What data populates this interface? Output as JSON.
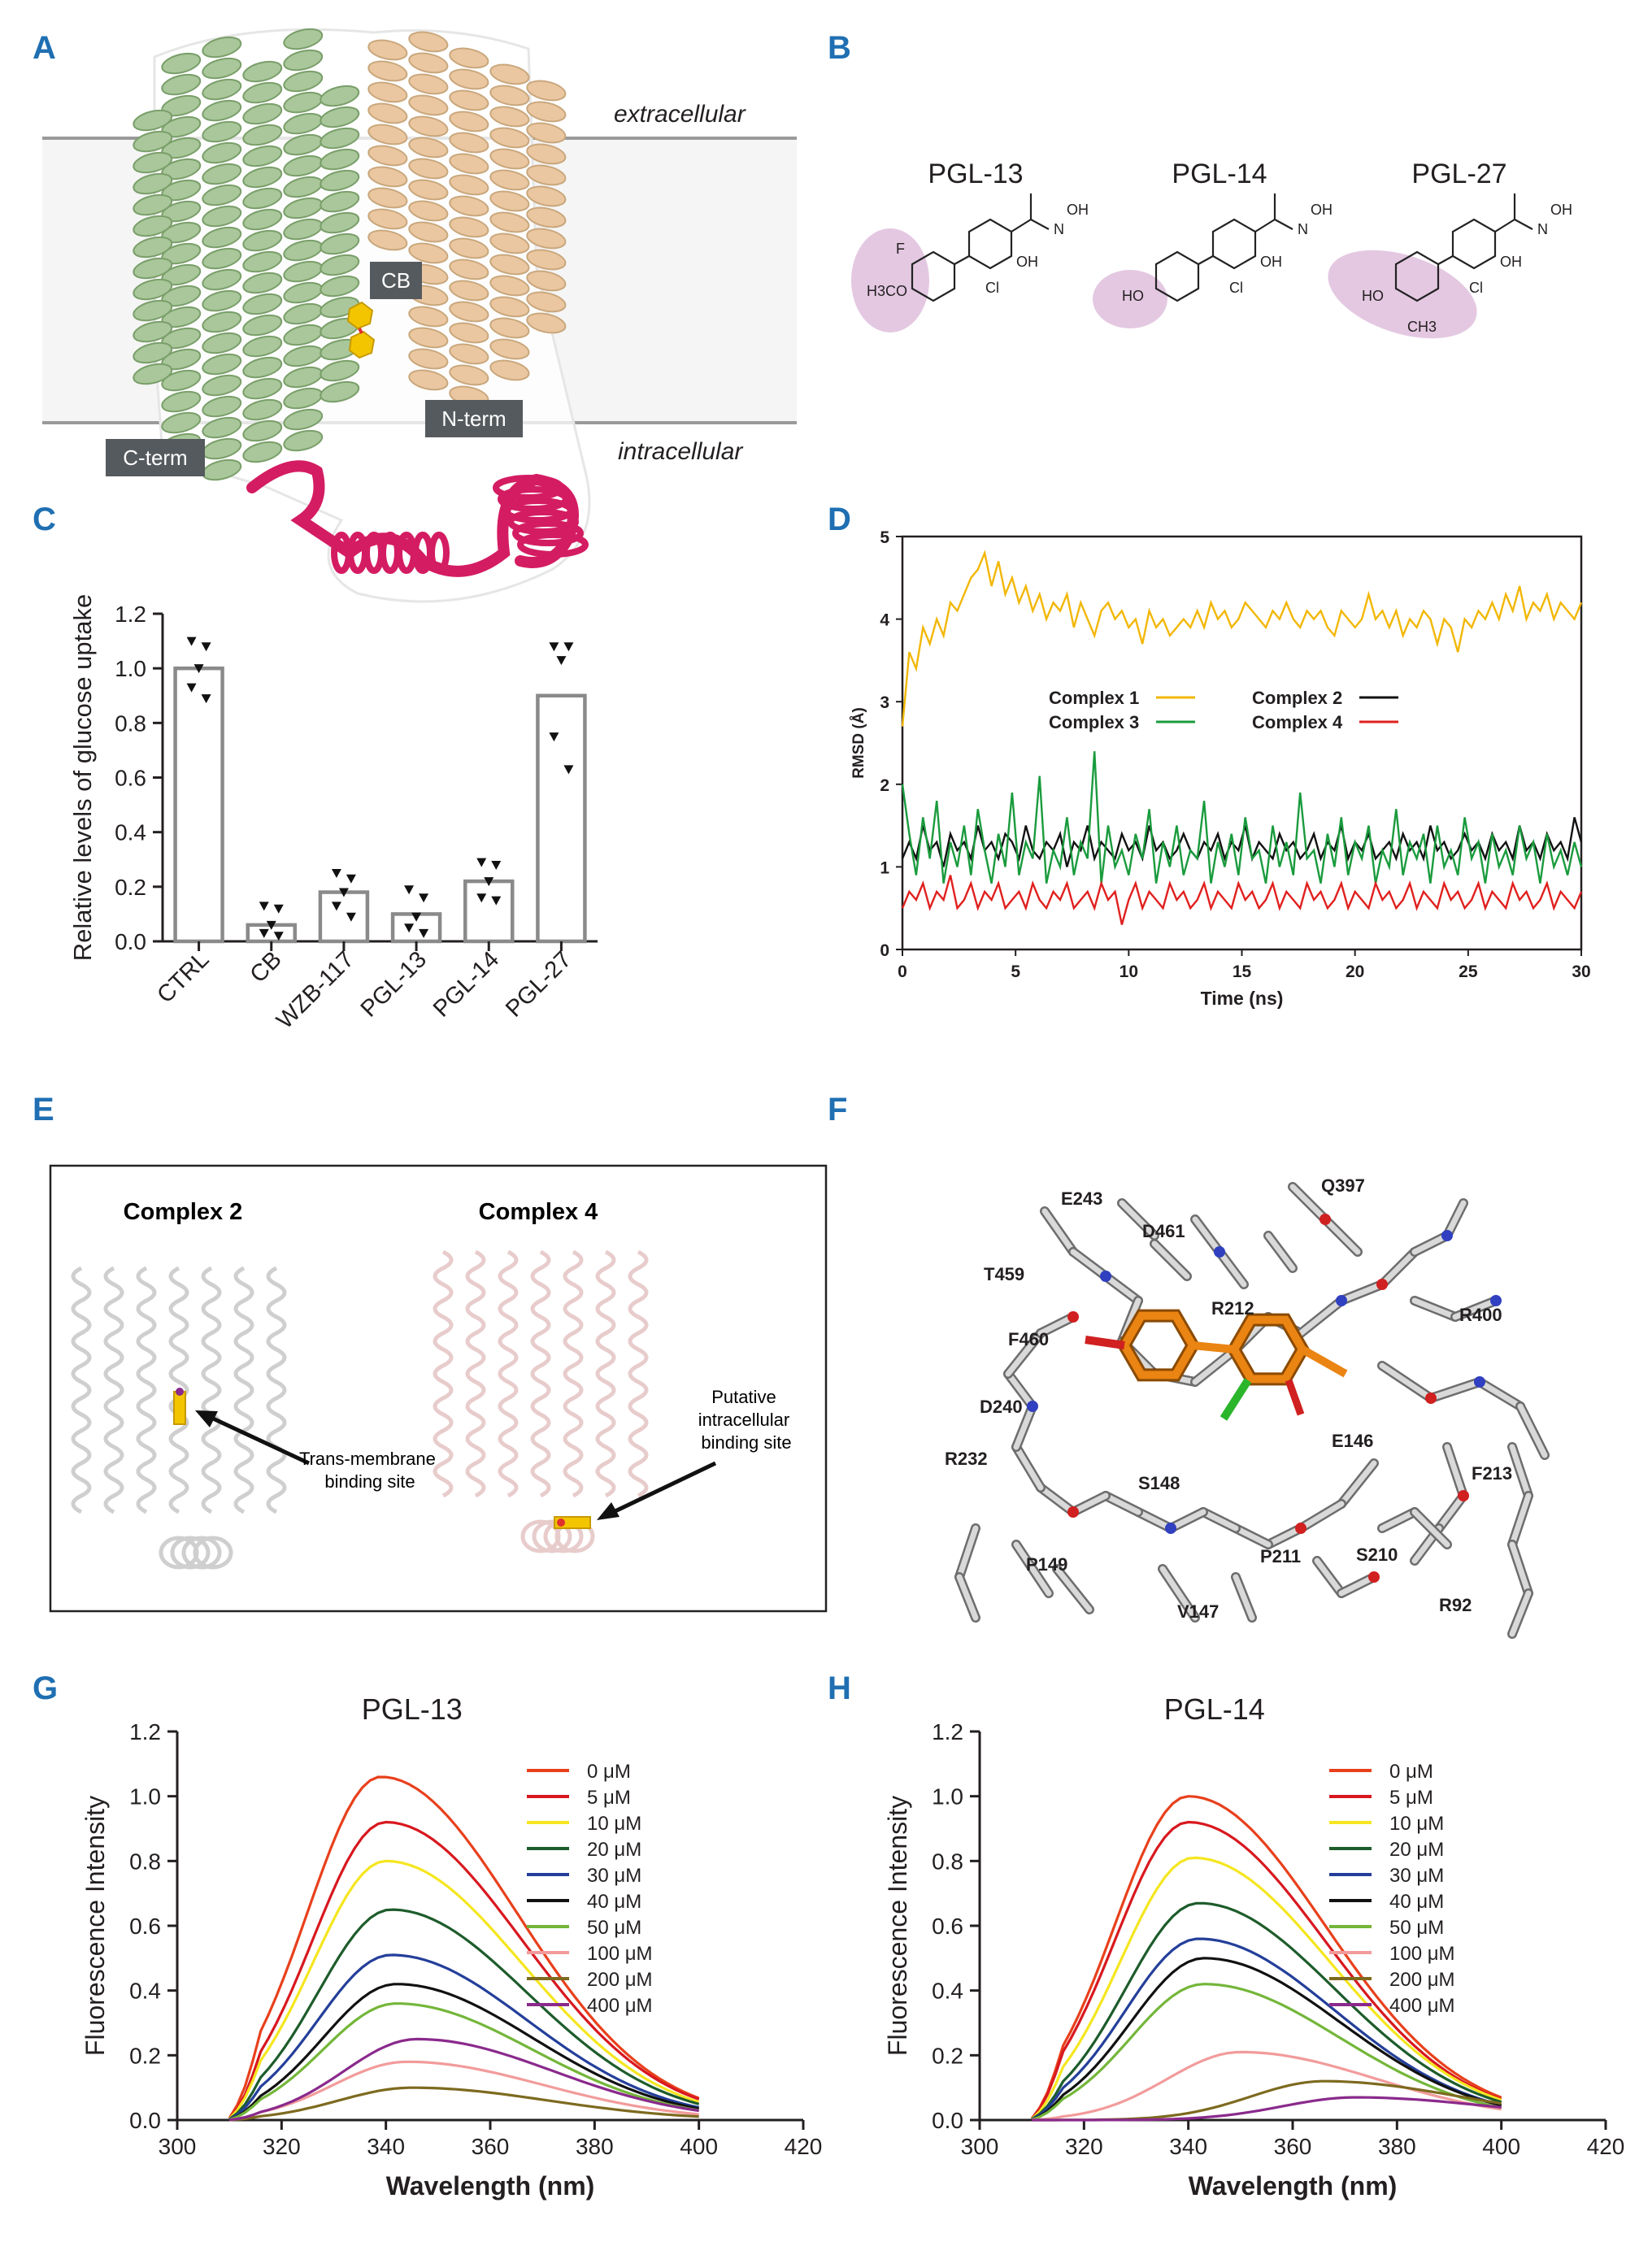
{
  "panels": {
    "A": {
      "label": "A",
      "extracellular": "extracellular",
      "intracellular": "intracellular",
      "boxes": [
        "CB",
        "N-term",
        "C-term"
      ],
      "colors": {
        "chain_c": "#a9c79a",
        "chain_n": "#eac7a0",
        "loop": "#d41c62",
        "ligand": "#f2c500"
      }
    },
    "B": {
      "label": "B",
      "compounds": [
        {
          "name": "PGL-13",
          "substituents": [
            "F",
            "H3CO"
          ]
        },
        {
          "name": "PGL-14",
          "substituents": [
            "HO"
          ]
        },
        {
          "name": "PGL-27",
          "substituents": [
            "HO",
            "CH3"
          ]
        }
      ],
      "core_atoms": [
        "OH",
        "Cl",
        "N",
        "OH"
      ],
      "highlight_color": "#d8b0d5"
    },
    "C": {
      "label": "C"
    },
    "D": {
      "label": "D"
    },
    "E": {
      "label": "E",
      "complexes": [
        {
          "title": "Complex 2",
          "note": "Trans-membrane binding site"
        },
        {
          "title": "Complex 4",
          "note": "Putative intracellular binding site"
        }
      ]
    },
    "F": {
      "label": "F",
      "residues": [
        "E243",
        "D461",
        "Q397",
        "T459",
        "F460",
        "R212",
        "R400",
        "D240",
        "R232",
        "E146",
        "F213",
        "S148",
        "S210",
        "P149",
        "P211",
        "V147",
        "R92"
      ],
      "ligand_color": "#ea8412"
    },
    "G": {
      "label": "G"
    },
    "H": {
      "label": "H"
    }
  },
  "chart_data": [
    {
      "panel": "C",
      "type": "bar",
      "ylabel": "Relative levels of glucose uptake",
      "categories": [
        "CTRL",
        "CB",
        "WZB-117",
        "PGL-13",
        "PGL-14",
        "PGL-27"
      ],
      "values": [
        1.0,
        0.06,
        0.18,
        0.1,
        0.22,
        0.9
      ],
      "points": [
        [
          1.1,
          1.08,
          1.0,
          0.93,
          0.89
        ],
        [
          0.13,
          0.12,
          0.06,
          0.03,
          0.02
        ],
        [
          0.25,
          0.23,
          0.18,
          0.13,
          0.09
        ],
        [
          0.19,
          0.16,
          0.09,
          0.05,
          0.03
        ],
        [
          0.29,
          0.28,
          0.22,
          0.16,
          0.15
        ],
        [
          1.08,
          1.08,
          1.03,
          0.75,
          0.63
        ]
      ],
      "ylim": [
        0,
        1.2
      ],
      "yticks": [
        0.0,
        0.2,
        0.4,
        0.6,
        0.8,
        1.0,
        1.2
      ]
    },
    {
      "panel": "D",
      "type": "line",
      "xlabel": "Time (ns)",
      "ylabel": "RMSD (Å)",
      "xlim": [
        0,
        30
      ],
      "ylim": [
        0,
        5
      ],
      "xticks": [
        0,
        5,
        10,
        15,
        20,
        25,
        30
      ],
      "yticks": [
        0,
        1,
        2,
        3,
        4,
        5
      ],
      "legend_position": "center",
      "series": [
        {
          "name": "Complex 1",
          "color": "#f2b705",
          "y": [
            2.7,
            3.6,
            3.4,
            3.9,
            3.7,
            4.0,
            3.8,
            4.2,
            4.1,
            4.3,
            4.5,
            4.6,
            4.8,
            4.4,
            4.7,
            4.3,
            4.5,
            4.2,
            4.4,
            4.1,
            4.3,
            4.0,
            4.2,
            4.1,
            4.3,
            3.9,
            4.2,
            4.0,
            3.8,
            4.1,
            4.2,
            4.0,
            4.1,
            3.9,
            4.0,
            3.7,
            4.1,
            3.9,
            4.0,
            3.8,
            3.9,
            4.0,
            3.9,
            4.1,
            3.9,
            4.2,
            4.0,
            4.1,
            3.9,
            4.0,
            4.2,
            4.1,
            4.0,
            3.9,
            4.1,
            4.0,
            4.2,
            4.0,
            3.9,
            4.1,
            4.0,
            4.1,
            3.9,
            3.8,
            4.1,
            4.0,
            3.9,
            4.0,
            4.3,
            4.0,
            4.1,
            3.9,
            4.1,
            3.8,
            4.0,
            3.9,
            4.1,
            4.0,
            3.7,
            4.0,
            3.9,
            3.6,
            4.0,
            3.9,
            4.1,
            4.0,
            4.2,
            4.0,
            4.3,
            4.1,
            4.4,
            4.0,
            4.2,
            4.1,
            4.3,
            4.0,
            4.2,
            4.1,
            4.0,
            4.2
          ]
        },
        {
          "name": "Complex 2",
          "color": "#111111",
          "y": [
            1.1,
            1.3,
            1.1,
            1.5,
            1.2,
            1.3,
            1.0,
            1.4,
            1.2,
            1.3,
            1.1,
            1.5,
            1.2,
            1.3,
            1.1,
            1.4,
            1.3,
            1.1,
            1.5,
            1.2,
            1.1,
            1.3,
            1.2,
            1.4,
            1.0,
            1.3,
            1.2,
            1.5,
            1.1,
            1.3,
            1.2,
            1.1,
            1.4,
            1.2,
            1.3,
            1.1,
            1.5,
            1.2,
            1.3,
            1.1,
            1.2,
            1.4,
            1.2,
            1.1,
            1.3,
            1.2,
            1.4,
            1.1,
            1.3,
            1.2,
            1.5,
            1.1,
            1.3,
            1.2,
            1.1,
            1.4,
            1.2,
            1.3,
            1.1,
            1.2,
            1.4,
            1.1,
            1.3,
            1.2,
            1.5,
            1.1,
            1.3,
            1.2,
            1.4,
            1.1,
            1.2,
            1.3,
            1.1,
            1.4,
            1.2,
            1.3,
            1.1,
            1.5,
            1.2,
            1.3,
            1.1,
            1.2,
            1.4,
            1.2,
            1.3,
            1.1,
            1.4,
            1.2,
            1.3,
            1.1,
            1.5,
            1.2,
            1.3,
            1.1,
            1.4,
            1.2,
            1.3,
            1.1,
            1.6,
            1.3
          ]
        },
        {
          "name": "Complex 3",
          "color": "#1a9b3d",
          "y": [
            2.0,
            1.4,
            0.9,
            1.6,
            1.1,
            1.8,
            0.8,
            1.3,
            1.0,
            1.5,
            0.9,
            1.7,
            1.2,
            0.8,
            1.4,
            1.0,
            1.9,
            0.9,
            1.3,
            1.1,
            2.1,
            0.8,
            1.2,
            1.0,
            1.6,
            0.9,
            1.3,
            1.1,
            2.4,
            0.8,
            1.5,
            1.0,
            1.2,
            0.9,
            1.4,
            1.1,
            1.7,
            0.8,
            1.3,
            1.0,
            1.5,
            0.9,
            1.2,
            1.1,
            1.8,
            0.8,
            1.3,
            1.0,
            1.4,
            0.9,
            1.6,
            1.1,
            1.2,
            0.8,
            1.5,
            1.0,
            1.3,
            0.9,
            1.9,
            1.1,
            1.2,
            0.8,
            1.4,
            1.0,
            1.6,
            0.9,
            1.3,
            1.1,
            1.5,
            0.8,
            1.2,
            1.0,
            1.7,
            0.9,
            1.3,
            1.1,
            1.4,
            0.8,
            1.5,
            1.0,
            1.2,
            0.9,
            1.6,
            1.1,
            1.3,
            0.8,
            1.4,
            1.0,
            1.2,
            0.9,
            1.5,
            1.1,
            1.3,
            0.8,
            1.4,
            1.0,
            1.2,
            0.9,
            1.3,
            1.0
          ]
        },
        {
          "name": "Complex 4",
          "color": "#e0201e",
          "y": [
            0.5,
            0.7,
            0.6,
            0.8,
            0.5,
            0.7,
            0.6,
            0.9,
            0.5,
            0.6,
            0.8,
            0.5,
            0.7,
            0.6,
            0.8,
            0.5,
            0.6,
            0.7,
            0.5,
            0.8,
            0.6,
            0.5,
            0.7,
            0.6,
            0.8,
            0.5,
            0.6,
            0.7,
            0.5,
            0.8,
            0.6,
            0.7,
            0.3,
            0.6,
            0.8,
            0.5,
            0.7,
            0.6,
            0.5,
            0.8,
            0.6,
            0.7,
            0.5,
            0.6,
            0.8,
            0.5,
            0.7,
            0.6,
            0.5,
            0.8,
            0.6,
            0.7,
            0.5,
            0.6,
            0.8,
            0.5,
            0.7,
            0.6,
            0.5,
            0.8,
            0.6,
            0.7,
            0.5,
            0.6,
            0.8,
            0.5,
            0.7,
            0.6,
            0.5,
            0.8,
            0.6,
            0.7,
            0.5,
            0.6,
            0.8,
            0.5,
            0.7,
            0.6,
            0.5,
            0.8,
            0.6,
            0.7,
            0.5,
            0.6,
            0.8,
            0.5,
            0.7,
            0.6,
            0.5,
            0.8,
            0.6,
            0.7,
            0.5,
            0.6,
            0.8,
            0.5,
            0.7,
            0.6,
            0.5,
            0.7
          ]
        }
      ]
    },
    {
      "panel": "G",
      "type": "line",
      "title": "PGL-13",
      "xlabel": "Wavelength (nm)",
      "ylabel": "Fluorescence Intensity",
      "xlim": [
        300,
        420
      ],
      "ylim": [
        0,
        1.2
      ],
      "xticks": [
        300,
        320,
        340,
        360,
        380,
        400,
        420
      ],
      "yticks": [
        0.0,
        0.2,
        0.4,
        0.6,
        0.8,
        1.0,
        1.2
      ],
      "legend_position": "top-right",
      "x_range": [
        310,
        400
      ],
      "series": [
        {
          "name": "0 μM",
          "color": "#e8401c",
          "peak": 1.06,
          "peak_x": 339
        },
        {
          "name": "5 μM",
          "color": "#d8181f",
          "peak": 0.92,
          "peak_x": 340
        },
        {
          "name": "10 μM",
          "color": "#f5e61f",
          "peak": 0.8,
          "peak_x": 340
        },
        {
          "name": "20 μM",
          "color": "#1d5c2b",
          "peak": 0.65,
          "peak_x": 341
        },
        {
          "name": "30 μM",
          "color": "#243f9a",
          "peak": 0.51,
          "peak_x": 341
        },
        {
          "name": "40 μM",
          "color": "#111111",
          "peak": 0.42,
          "peak_x": 342
        },
        {
          "name": "50 μM",
          "color": "#74b63a",
          "peak": 0.36,
          "peak_x": 342
        },
        {
          "name": "100 μM",
          "color": "#f29b9b",
          "peak": 0.18,
          "peak_x": 344
        },
        {
          "name": "200 μM",
          "color": "#7d6a1f",
          "peak": 0.1,
          "peak_x": 345
        },
        {
          "name": "400 μM",
          "color": "#8a2a8c",
          "peak": 0.25,
          "peak_x": 346
        }
      ]
    },
    {
      "panel": "H",
      "type": "line",
      "title": "PGL-14",
      "xlabel": "Wavelength (nm)",
      "ylabel": "Fluorescence Intensity",
      "xlim": [
        300,
        420
      ],
      "ylim": [
        0,
        1.2
      ],
      "xticks": [
        300,
        320,
        340,
        360,
        380,
        400,
        420
      ],
      "yticks": [
        0.0,
        0.2,
        0.4,
        0.6,
        0.8,
        1.0,
        1.2
      ],
      "legend_position": "top-right",
      "x_range": [
        310,
        400
      ],
      "series": [
        {
          "name": "0 μM",
          "color": "#e8401c",
          "peak": 1.0,
          "peak_x": 340
        },
        {
          "name": "5 μM",
          "color": "#d8181f",
          "peak": 0.92,
          "peak_x": 340
        },
        {
          "name": "10 μM",
          "color": "#f5e61f",
          "peak": 0.81,
          "peak_x": 341
        },
        {
          "name": "20 μM",
          "color": "#1d5c2b",
          "peak": 0.67,
          "peak_x": 342
        },
        {
          "name": "30 μM",
          "color": "#243f9a",
          "peak": 0.56,
          "peak_x": 342
        },
        {
          "name": "40 μM",
          "color": "#111111",
          "peak": 0.5,
          "peak_x": 343
        },
        {
          "name": "50 μM",
          "color": "#74b63a",
          "peak": 0.42,
          "peak_x": 343
        },
        {
          "name": "100 μM",
          "color": "#f29b9b",
          "peak": 0.21,
          "peak_x": 350
        },
        {
          "name": "200 μM",
          "color": "#7d6a1f",
          "peak": 0.12,
          "peak_x": 366
        },
        {
          "name": "400 μM",
          "color": "#8a2a8c",
          "peak": 0.07,
          "peak_x": 372
        }
      ]
    }
  ]
}
